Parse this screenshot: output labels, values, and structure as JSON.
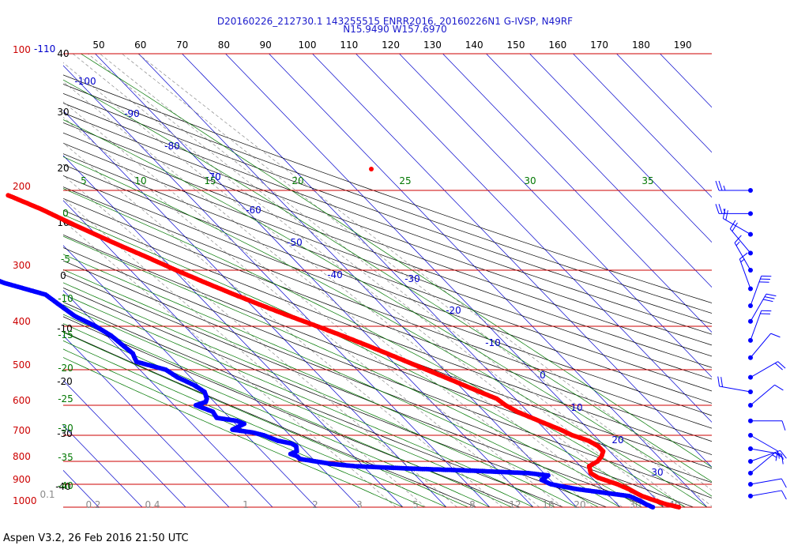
{
  "header": {
    "line1": "D20160226_212730.1 143255515 ENRR2016, 20160226N1 G-IVSP, N49RF",
    "line2": "N15.9490 W157.6970"
  },
  "footer": {
    "text": "Aspen V3.2, 26 Feb 2016  21:50 UTC"
  },
  "colors": {
    "isobar": "#cc0000",
    "isotherm": "#0000cc",
    "dry_adiabat": "#000000",
    "moist_adiabat": "#007700",
    "mixing_ratio": "#8a8a8a",
    "temperature": "#ff0000",
    "dewpoint": "#0000ff"
  },
  "chart_data": {
    "type": "skew-t",
    "pressure_axis": {
      "labels": [
        "100",
        "200",
        "300",
        "400",
        "500",
        "600",
        "700",
        "800",
        "900",
        "1000"
      ],
      "values": [
        100,
        200,
        300,
        400,
        500,
        600,
        700,
        800,
        900,
        1000
      ],
      "scale": "log",
      "range": [
        1000,
        100
      ]
    },
    "top_temperature_ticks": [
      "50",
      "60",
      "70",
      "80",
      "90",
      "100",
      "110",
      "120",
      "130",
      "140",
      "150",
      "160",
      "170",
      "180",
      "190"
    ],
    "top_left_labels": [
      "-110"
    ],
    "isotherm_labels": [
      "-100",
      "-90",
      "-80",
      "-70",
      "-60",
      "-50",
      "-40",
      "-30",
      "-20",
      "-10",
      "0",
      "10",
      "20",
      "30",
      "40"
    ],
    "dry_adiabat_labels": [
      "40",
      "30",
      "20",
      "10",
      "0",
      "-10",
      "-20",
      "-30",
      "-40"
    ],
    "moist_adiabat_labels_left": [
      "0",
      "-5",
      "-10",
      "-15",
      "-20",
      "-25",
      "-30",
      "-35",
      "-40"
    ],
    "moist_adiabat_labels_top": [
      "5",
      "10",
      "15",
      "20",
      "25",
      "30",
      "35"
    ],
    "mixing_ratio_labels": [
      "0.1",
      "0.2",
      "0.4",
      "1",
      "2",
      "3",
      "5",
      "8",
      "12",
      "16",
      "20",
      "30",
      "40"
    ],
    "temperature": {
      "name": "Temperature",
      "pressure": [
        1000,
        985,
        970,
        950,
        920,
        900,
        870,
        850,
        820,
        800,
        780,
        760,
        740,
        720,
        700,
        680,
        660,
        640,
        620,
        600,
        580,
        560,
        540,
        520,
        500,
        480,
        460,
        440,
        420,
        400,
        380,
        360,
        340,
        320,
        300,
        280,
        260,
        240,
        220,
        205
      ],
      "temp": [
        23.5,
        21,
        19.5,
        17.5,
        16,
        14.5,
        11.5,
        10.8,
        12,
        15,
        17,
        18.5,
        18.5,
        17.5,
        15,
        13.5,
        11.5,
        9.5,
        7.5,
        6.3,
        5.7,
        3.3,
        1,
        -1.4,
        -4,
        -6.7,
        -9.5,
        -12.5,
        -15.8,
        -19.5,
        -23.5,
        -27.5,
        -31.5,
        -35.5,
        -39.5,
        -43.5,
        -48,
        -52.5,
        -57,
        -61.5
      ]
    },
    "dewpoint": {
      "name": "Dewpoint",
      "pressure": [
        1000,
        985,
        970,
        950,
        920,
        900,
        880,
        860,
        850,
        840,
        830,
        820,
        810,
        800,
        790,
        780,
        770,
        760,
        750,
        740,
        730,
        720,
        700,
        690,
        680,
        670,
        660,
        650,
        640,
        620,
        600,
        590,
        580,
        560,
        540,
        520,
        500,
        480,
        460,
        440,
        420,
        400,
        380,
        360,
        340,
        320,
        300,
        280,
        260,
        240,
        220
      ],
      "dewp": [
        17.5,
        16.5,
        16,
        14.5,
        4,
        -0.8,
        -2,
        0.5,
        -3.5,
        -15,
        -30,
        -42,
        -47,
        -50,
        -53,
        -53,
        -54,
        -52,
        -51.5,
        -51,
        -51.5,
        -54,
        -56,
        -58,
        -62,
        -60,
        -58,
        -59,
        -63,
        -62.5,
        -65,
        -62,
        -61,
        -60,
        -61,
        -63,
        -64,
        -69,
        -68,
        -68.5,
        -69,
        -70.5,
        -73,
        -74,
        -75,
        -82,
        -86,
        -89,
        -92,
        -95,
        -98
      ]
    },
    "wind_barbs": {
      "pressure": [
        200,
        225,
        250,
        275,
        300,
        330,
        360,
        390,
        430,
        470,
        520,
        560,
        600,
        650,
        700,
        750,
        800,
        850,
        900,
        950
      ],
      "speed_kt": [
        25,
        25,
        20,
        20,
        15,
        15,
        30,
        30,
        20,
        10,
        20,
        20,
        10,
        10,
        10,
        15,
        20,
        15,
        10,
        10
      ],
      "direction_deg": [
        270,
        270,
        300,
        320,
        330,
        340,
        20,
        30,
        20,
        40,
        60,
        280,
        50,
        90,
        120,
        100,
        70,
        50,
        80,
        80
      ]
    }
  }
}
